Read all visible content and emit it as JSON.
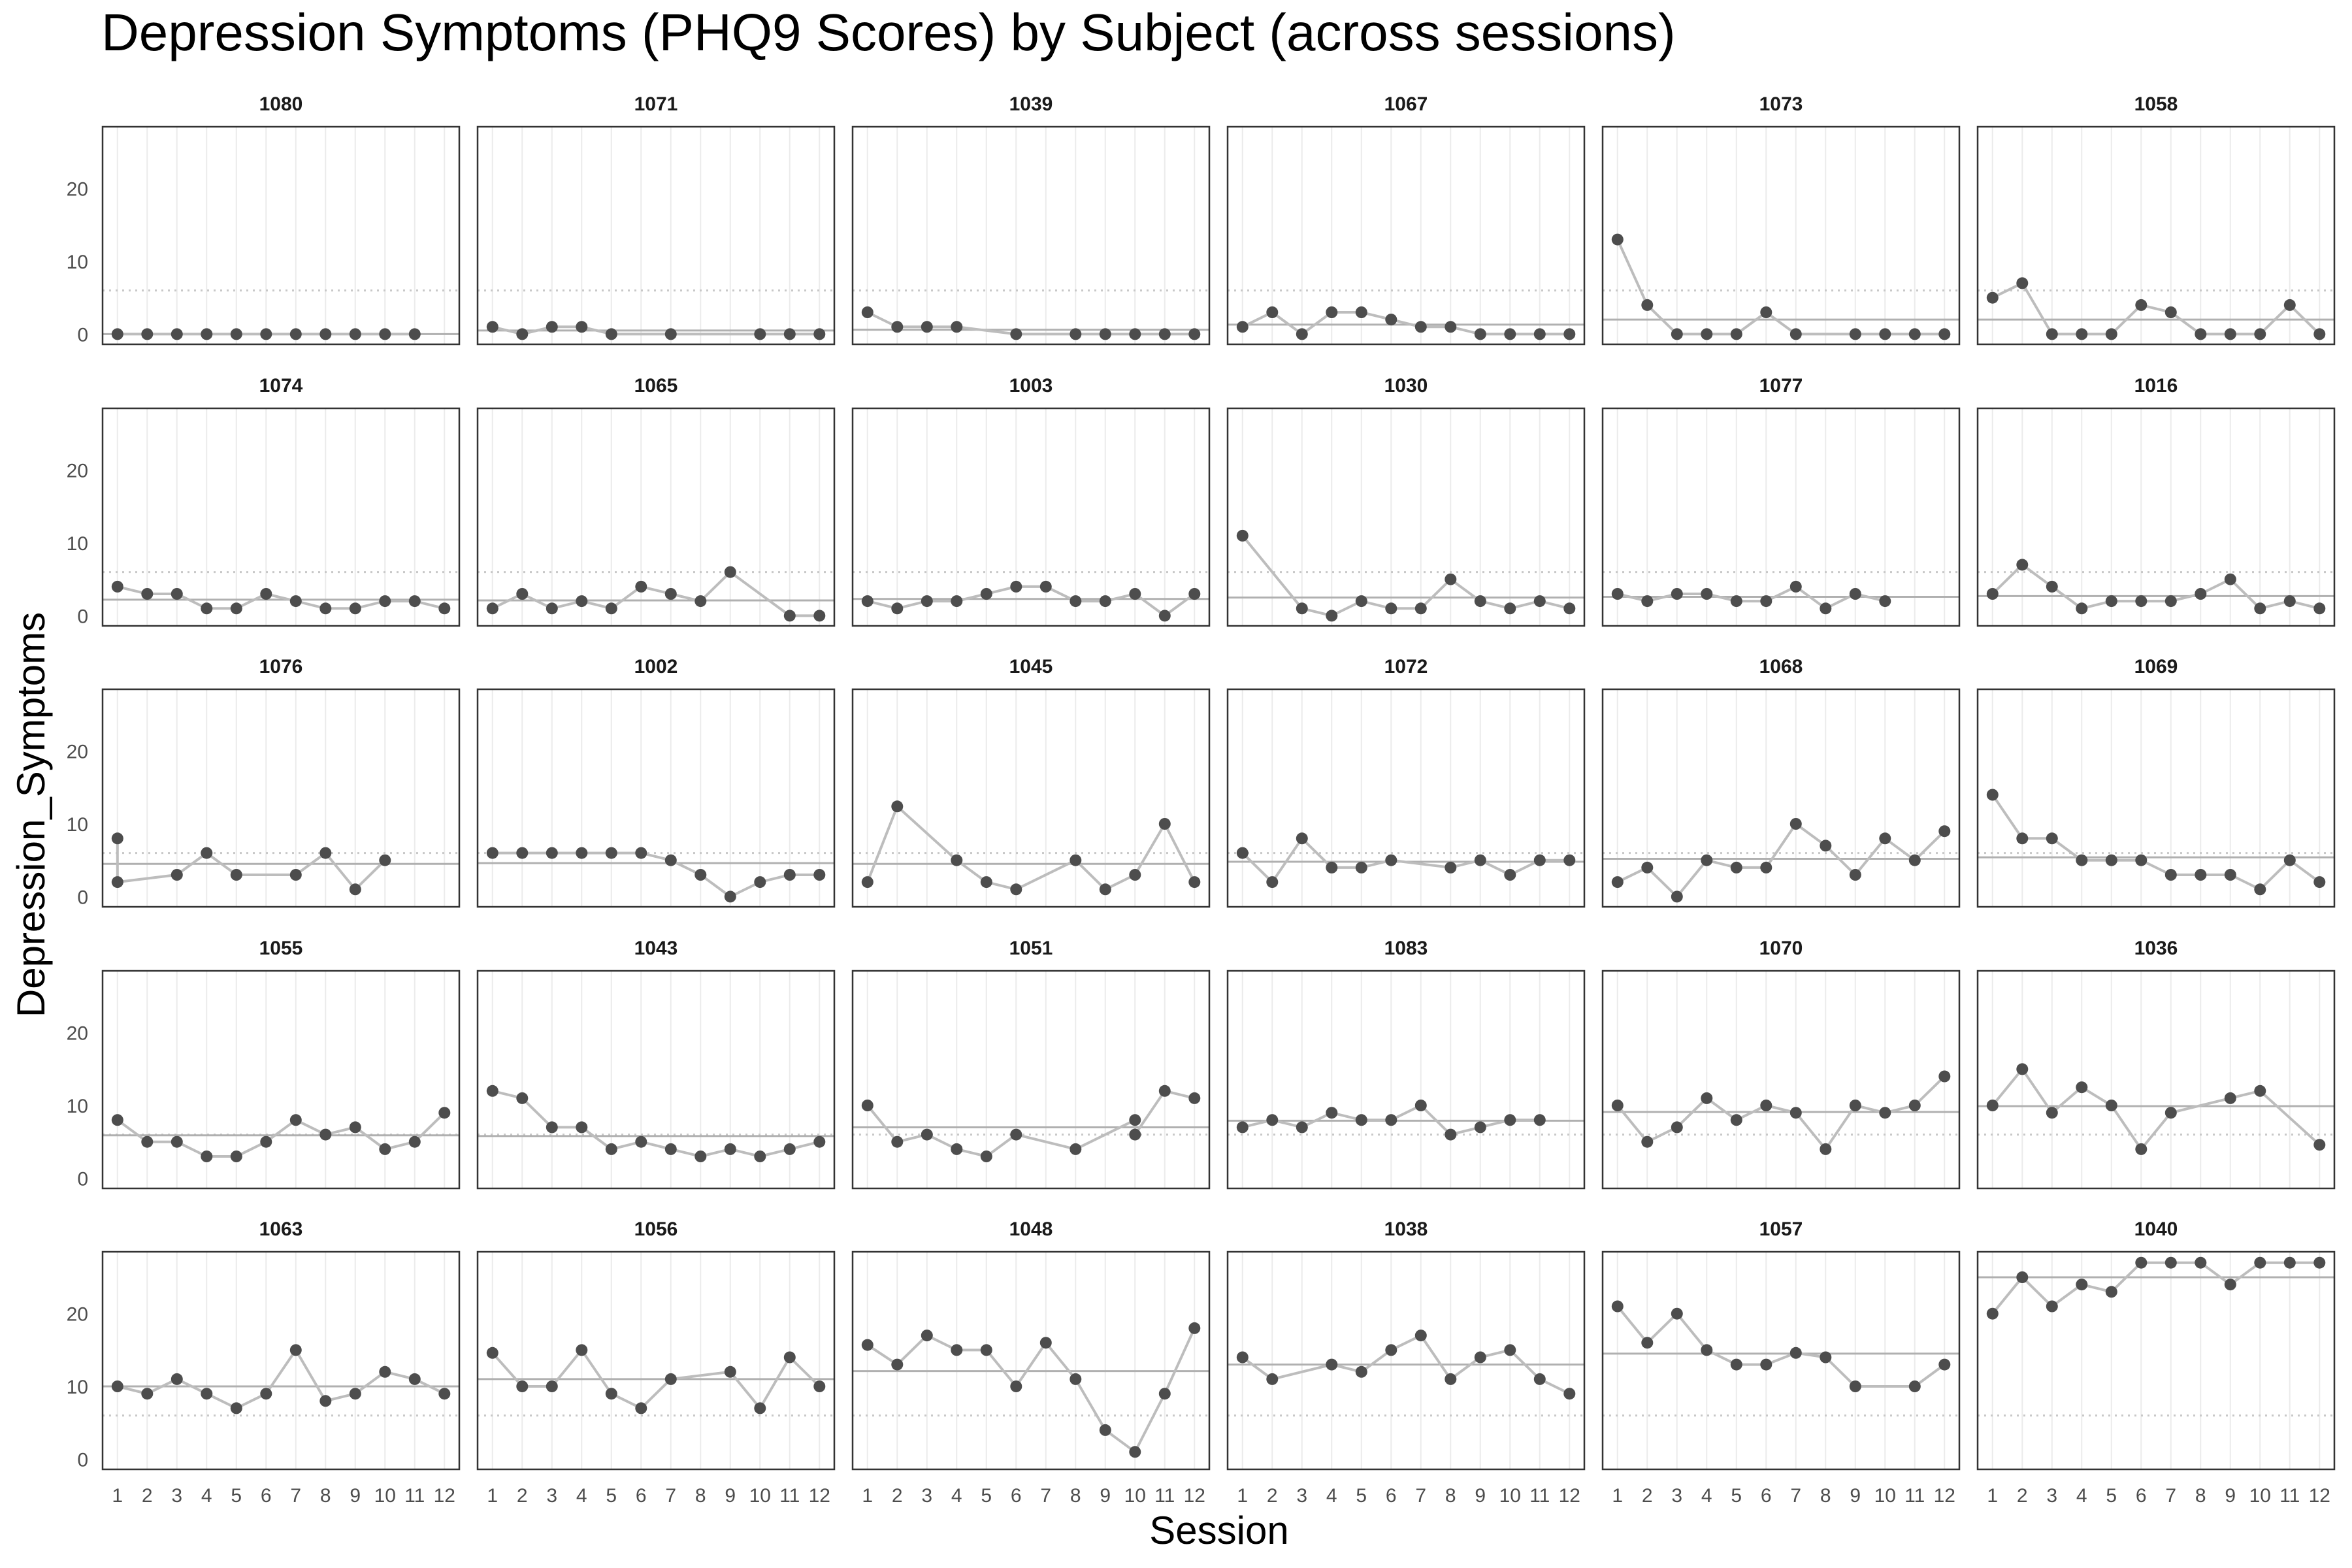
{
  "chart_data": {
    "type": "line",
    "title": "Depression Symptoms (PHQ9 Scores) by Subject (across sessions)",
    "xlabel": "Session",
    "ylabel": "Depression_Symptoms",
    "x_ticks": [
      "1",
      "2",
      "3",
      "4",
      "5",
      "6",
      "7",
      "8",
      "9",
      "10",
      "11",
      "12"
    ],
    "y_ticks": [
      0,
      10,
      20
    ],
    "xlim": [
      0.5,
      12.5
    ],
    "ylim": [
      -1.4,
      28.5
    ],
    "reference_line": 6,
    "reference_style": "dotted",
    "grid": "vertical",
    "facets": [
      {
        "label": "1080",
        "mean": 0,
        "values": [
          0,
          0,
          0,
          0,
          0,
          0,
          0,
          0,
          0,
          0,
          0,
          null
        ]
      },
      {
        "label": "1071",
        "mean": 0.5,
        "values": [
          1,
          0,
          1,
          1,
          0,
          null,
          0,
          null,
          null,
          0,
          0,
          0
        ]
      },
      {
        "label": "1039",
        "mean": 0.6,
        "values": [
          3,
          1,
          1,
          1,
          null,
          0,
          null,
          0,
          0,
          0,
          0,
          0
        ]
      },
      {
        "label": "1067",
        "mean": 1.3,
        "values": [
          1,
          3,
          0,
          3,
          3,
          2,
          1,
          1,
          0,
          0,
          0,
          0
        ]
      },
      {
        "label": "1073",
        "mean": 2,
        "values": [
          13,
          4,
          0,
          0,
          0,
          3,
          0,
          null,
          0,
          0,
          0,
          0
        ]
      },
      {
        "label": "1058",
        "mean": 2,
        "values": [
          5,
          7,
          0,
          0,
          0,
          4,
          3,
          0,
          0,
          0,
          4,
          0
        ]
      },
      {
        "label": "1074",
        "mean": 2.2,
        "values": [
          4,
          3,
          3,
          1,
          1,
          3,
          2,
          1,
          1,
          2,
          2,
          1
        ]
      },
      {
        "label": "1065",
        "mean": 2.1,
        "values": [
          1,
          3,
          1,
          2,
          1,
          4,
          3,
          2,
          6,
          null,
          0,
          0
        ]
      },
      {
        "label": "1003",
        "mean": 2.3,
        "values": [
          2,
          1,
          2,
          2,
          3,
          4,
          4,
          2,
          2,
          3,
          0,
          3
        ]
      },
      {
        "label": "1030",
        "mean": 2.5,
        "values": [
          11,
          null,
          1,
          0,
          2,
          1,
          1,
          5,
          2,
          1,
          2,
          1
        ]
      },
      {
        "label": "1077",
        "mean": 2.6,
        "values": [
          3,
          2,
          3,
          3,
          2,
          2,
          4,
          1,
          3,
          2,
          null,
          null
        ]
      },
      {
        "label": "1016",
        "mean": 2.7,
        "values": [
          3,
          7,
          4,
          1,
          2,
          2,
          2,
          3,
          5,
          1,
          2,
          1
        ]
      },
      {
        "label": "1076",
        "mean": 4.5,
        "values": [
          [
            8,
            2
          ],
          null,
          3,
          6,
          3,
          null,
          3,
          6,
          1,
          5,
          null,
          null
        ]
      },
      {
        "label": "1002",
        "mean": 4.6,
        "values": [
          6,
          6,
          6,
          6,
          6,
          6,
          5,
          3,
          0,
          2,
          3,
          3
        ]
      },
      {
        "label": "1045",
        "mean": 4.5,
        "values": [
          2,
          12.4,
          null,
          5,
          2,
          1,
          null,
          5,
          1,
          3,
          10,
          2
        ]
      },
      {
        "label": "1072",
        "mean": 4.8,
        "values": [
          6,
          2,
          8,
          4,
          4,
          5,
          null,
          4,
          5,
          3,
          5,
          5
        ]
      },
      {
        "label": "1068",
        "mean": 5.2,
        "values": [
          2,
          4,
          0,
          5,
          4,
          4,
          10,
          7,
          3,
          8,
          5,
          9
        ]
      },
      {
        "label": "1069",
        "mean": 5.4,
        "values": [
          14,
          8,
          8,
          5,
          5,
          5,
          3,
          3,
          3,
          1,
          5,
          2
        ]
      },
      {
        "label": "1055",
        "mean": 5.9,
        "values": [
          8,
          5,
          5,
          3,
          3,
          5,
          8,
          6,
          7,
          4,
          5,
          9
        ]
      },
      {
        "label": "1043",
        "mean": 5.8,
        "values": [
          12,
          11,
          7,
          7,
          4,
          5,
          4,
          3,
          4,
          3,
          4,
          5
        ]
      },
      {
        "label": "1051",
        "mean": 7,
        "values": [
          10,
          5,
          6,
          4,
          3,
          6,
          null,
          4,
          null,
          [
            8,
            6
          ],
          12,
          11
        ]
      },
      {
        "label": "1083",
        "mean": 7.9,
        "values": [
          7,
          8,
          7,
          9,
          8,
          8,
          10,
          6,
          7,
          8,
          8,
          null
        ]
      },
      {
        "label": "1070",
        "mean": 9.1,
        "values": [
          10,
          5,
          7,
          11,
          8,
          10,
          9,
          4,
          10,
          9,
          10,
          14
        ]
      },
      {
        "label": "1036",
        "mean": 9.9,
        "values": [
          10,
          15,
          9,
          12.5,
          10,
          4,
          9,
          null,
          11,
          12,
          null,
          4.6
        ]
      },
      {
        "label": "1063",
        "mean": 10,
        "values": [
          10,
          9,
          11,
          9,
          7,
          9,
          15,
          8,
          9,
          12,
          11,
          9
        ]
      },
      {
        "label": "1056",
        "mean": 11,
        "values": [
          14.6,
          10,
          10,
          15,
          9,
          7,
          11,
          null,
          12,
          7,
          14,
          10
        ]
      },
      {
        "label": "1048",
        "mean": 12.1,
        "values": [
          15.7,
          13,
          17,
          15,
          15,
          10,
          16,
          11,
          4,
          1,
          9,
          18
        ]
      },
      {
        "label": "1038",
        "mean": 13,
        "values": [
          14,
          11,
          null,
          13,
          12,
          15,
          17,
          11,
          14,
          15,
          11,
          9
        ]
      },
      {
        "label": "1057",
        "mean": 14.5,
        "values": [
          21,
          16,
          20,
          15,
          13,
          13,
          14.6,
          14,
          10,
          null,
          10,
          13
        ]
      },
      {
        "label": "1040",
        "mean": 25,
        "values": [
          20,
          25,
          21,
          24,
          23,
          27,
          27,
          27,
          24,
          27,
          27,
          27
        ]
      }
    ]
  }
}
